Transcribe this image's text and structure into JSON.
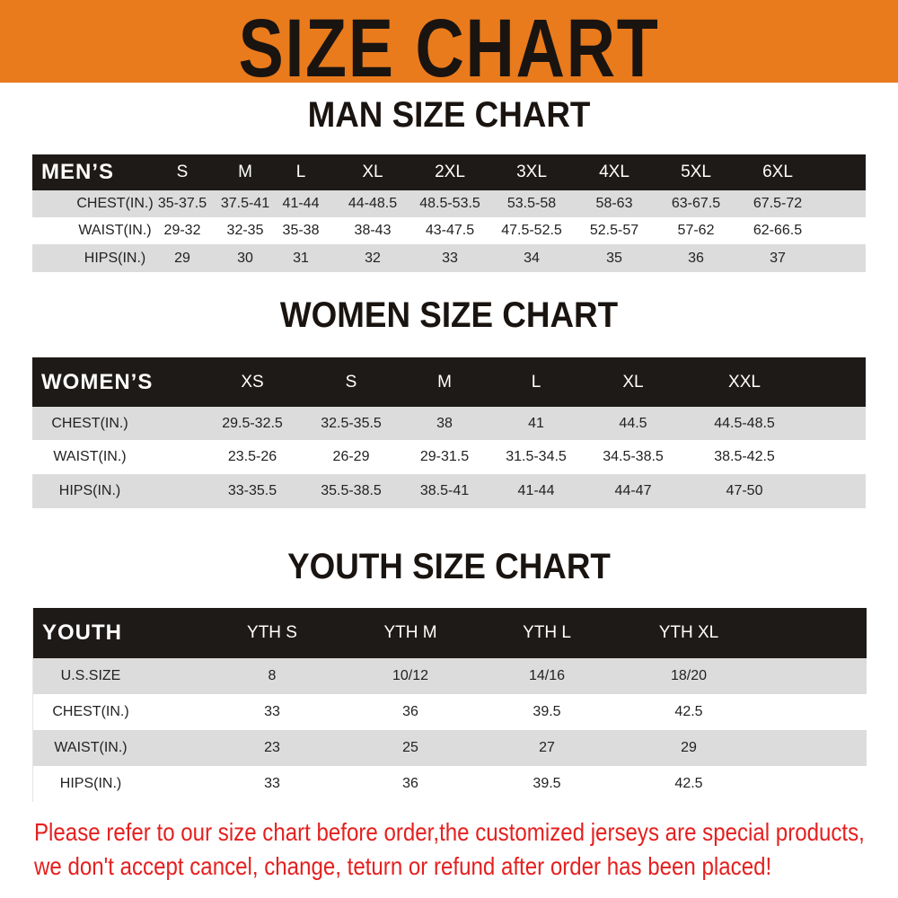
{
  "banner": {
    "title": "SIZE CHART",
    "color": "#e97b1c"
  },
  "men": {
    "title": "MAN SIZE CHART",
    "header": [
      "MEN’S",
      "S",
      "M",
      "L",
      "XL",
      "2XL",
      "3XL",
      "4XL",
      "5XL",
      "6XL"
    ],
    "rows": [
      [
        "CHEST(IN.)",
        "35-37.5",
        "37.5-41",
        "41-44",
        "44-48.5",
        "48.5-53.5",
        "53.5-58",
        "58-63",
        "63-67.5",
        "67.5-72"
      ],
      [
        "WAIST(IN.)",
        "29-32",
        "32-35",
        "35-38",
        "38-43",
        "43-47.5",
        "47.5-52.5",
        "52.5-57",
        "57-62",
        "62-66.5"
      ],
      [
        "HIPS(IN.)",
        "29",
        "30",
        "31",
        "32",
        "33",
        "34",
        "35",
        "36",
        "37"
      ]
    ]
  },
  "women": {
    "title": "WOMEN SIZE CHART",
    "header": [
      "WOMEN’S",
      "XS",
      "S",
      "M",
      "L",
      "XL",
      "XXL"
    ],
    "rows": [
      [
        "CHEST(IN.)",
        "29.5-32.5",
        "32.5-35.5",
        "38",
        "41",
        "44.5",
        "44.5-48.5"
      ],
      [
        "WAIST(IN.)",
        "23.5-26",
        "26-29",
        "29-31.5",
        "31.5-34.5",
        "34.5-38.5",
        "38.5-42.5"
      ],
      [
        "HIPS(IN.)",
        "33-35.5",
        "35.5-38.5",
        "38.5-41",
        "41-44",
        "44-47",
        "47-50"
      ]
    ]
  },
  "youth": {
    "title": "YOUTH SIZE CHART",
    "header": [
      "YOUTH",
      "YTH S",
      "YTH M",
      "YTH L",
      "YTH XL"
    ],
    "rows": [
      [
        "U.S.SIZE",
        "8",
        "10/12",
        "14/16",
        "18/20"
      ],
      [
        "CHEST(IN.)",
        "33",
        "36",
        "39.5",
        "42.5"
      ],
      [
        "WAIST(IN.)",
        "23",
        "25",
        "27",
        "29"
      ],
      [
        "HIPS(IN.)",
        "33",
        "36",
        "39.5",
        "42.5"
      ]
    ]
  },
  "notice": {
    "line1": "Please refer to our size chart before order,the customized jerseys are special products,",
    "line2": "we don't accept cancel, change, teturn or refund after order has been placed!",
    "color": "#e4201f"
  }
}
